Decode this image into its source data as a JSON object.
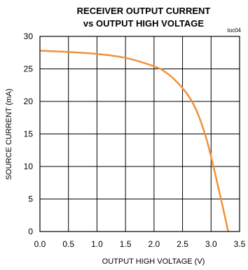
{
  "chart_data": {
    "type": "line",
    "title_lines": [
      "RECEIVER OUTPUT CURRENT",
      "vs OUTPUT HIGH VOLTAGE"
    ],
    "note": "toc04",
    "xlabel": "OUTPUT HIGH VOLTAGE (V)",
    "ylabel": "SOURCE CURRENT (mA)",
    "xlim": [
      0,
      3.5
    ],
    "ylim": [
      0,
      30
    ],
    "xticks": [
      "0.0",
      "0.5",
      "1.0",
      "1.5",
      "2.0",
      "2.5",
      "3.0",
      "3.5"
    ],
    "yticks": [
      "0",
      "5",
      "10",
      "15",
      "20",
      "25",
      "30"
    ],
    "grid": true,
    "line_color": "#f0923a",
    "series": [
      {
        "x": [
          0.0,
          0.5,
          1.0,
          1.5,
          2.0,
          2.2,
          2.4,
          2.6,
          2.75,
          2.9,
          3.0,
          3.1,
          3.2,
          3.3
        ],
        "y": [
          27.8,
          27.6,
          27.3,
          26.7,
          25.4,
          24.5,
          23.0,
          20.9,
          18.5,
          14.8,
          11.5,
          7.8,
          4.0,
          0.0
        ]
      }
    ]
  }
}
